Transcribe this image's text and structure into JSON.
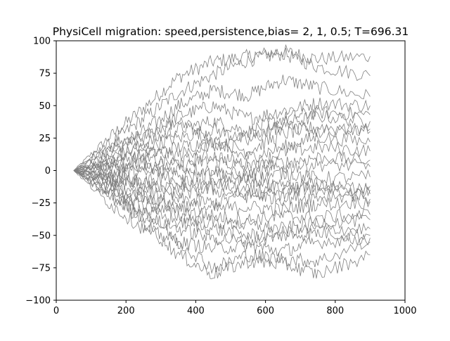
{
  "chart_data": {
    "type": "line",
    "title": "PhysiCell migration: speed,persistence,bias= 2, 1, 0.5; T=696.31",
    "xlabel": "",
    "ylabel": "",
    "xlim": [
      0,
      1000
    ],
    "ylim": [
      -100,
      100
    ],
    "xticks": [
      0,
      200,
      400,
      600,
      800,
      1000
    ],
    "yticks": [
      -100,
      -75,
      -50,
      -25,
      0,
      25,
      50,
      75,
      100
    ],
    "xtick_labels": [
      "0",
      "200",
      "400",
      "600",
      "800",
      "1000"
    ],
    "ytick_labels": [
      "−100",
      "−75",
      "−50",
      "−25",
      "0",
      "25",
      "50",
      "75",
      "100"
    ],
    "grid": false,
    "legend": "none",
    "line_color": "#808080",
    "x_start": 50,
    "x_end": 900,
    "series": [
      {
        "x": [
          50,
          150,
          250,
          350,
          450,
          550,
          650,
          750,
          900
        ],
        "y": [
          0,
          25,
          48,
          72,
          84,
          88,
          92,
          86,
          88
        ]
      },
      {
        "x": [
          50,
          150,
          250,
          350,
          450,
          550,
          650,
          750,
          900
        ],
        "y": [
          0,
          20,
          40,
          60,
          74,
          85,
          90,
          80,
          73
        ]
      },
      {
        "x": [
          50,
          150,
          250,
          350,
          450,
          550,
          650,
          750,
          900
        ],
        "y": [
          0,
          12,
          30,
          50,
          62,
          58,
          70,
          64,
          57
        ]
      },
      {
        "x": [
          50,
          150,
          250,
          350,
          450,
          550,
          650,
          750,
          900
        ],
        "y": [
          0,
          15,
          25,
          42,
          50,
          40,
          46,
          52,
          50
        ]
      },
      {
        "x": [
          50,
          150,
          250,
          350,
          450,
          550,
          650,
          750,
          900
        ],
        "y": [
          0,
          8,
          20,
          32,
          38,
          30,
          40,
          45,
          43
        ]
      },
      {
        "x": [
          50,
          150,
          250,
          350,
          450,
          550,
          650,
          750,
          900
        ],
        "y": [
          0,
          10,
          18,
          25,
          32,
          22,
          36,
          42,
          38
        ]
      },
      {
        "x": [
          50,
          150,
          250,
          350,
          450,
          550,
          650,
          750,
          900
        ],
        "y": [
          0,
          5,
          12,
          18,
          22,
          15,
          28,
          34,
          30
        ]
      },
      {
        "x": [
          50,
          150,
          250,
          350,
          450,
          550,
          650,
          750,
          900
        ],
        "y": [
          0,
          6,
          14,
          12,
          20,
          10,
          18,
          26,
          22
        ]
      },
      {
        "x": [
          50,
          150,
          250,
          350,
          450,
          550,
          650,
          750,
          900
        ],
        "y": [
          0,
          3,
          8,
          6,
          12,
          4,
          14,
          18,
          15
        ]
      },
      {
        "x": [
          50,
          150,
          250,
          350,
          450,
          550,
          650,
          750,
          900
        ],
        "y": [
          0,
          -2,
          5,
          3,
          8,
          2,
          6,
          10,
          8
        ]
      },
      {
        "x": [
          50,
          150,
          250,
          350,
          450,
          550,
          650,
          750,
          900
        ],
        "y": [
          0,
          4,
          -3,
          2,
          0,
          -4,
          2,
          5,
          3
        ]
      },
      {
        "x": [
          50,
          150,
          250,
          350,
          450,
          550,
          650,
          750,
          900
        ],
        "y": [
          0,
          -5,
          -8,
          -5,
          -3,
          -8,
          -2,
          -6,
          -5
        ]
      },
      {
        "x": [
          50,
          150,
          250,
          350,
          450,
          550,
          650,
          750,
          900
        ],
        "y": [
          0,
          -3,
          -10,
          -14,
          -10,
          -16,
          -12,
          -15,
          -12
        ]
      },
      {
        "x": [
          50,
          150,
          250,
          350,
          450,
          550,
          650,
          750,
          900
        ],
        "y": [
          0,
          -8,
          -12,
          -18,
          -15,
          -20,
          -18,
          -12,
          -15
        ]
      },
      {
        "x": [
          50,
          150,
          250,
          350,
          450,
          550,
          650,
          750,
          900
        ],
        "y": [
          0,
          -6,
          -15,
          -22,
          -25,
          -18,
          -22,
          -20,
          -18
        ]
      },
      {
        "x": [
          50,
          150,
          250,
          350,
          450,
          550,
          650,
          750,
          900
        ],
        "y": [
          0,
          -10,
          -20,
          -26,
          -30,
          -28,
          -30,
          -26,
          -24
        ]
      },
      {
        "x": [
          50,
          150,
          250,
          350,
          450,
          550,
          650,
          750,
          900
        ],
        "y": [
          0,
          -12,
          -22,
          -30,
          -35,
          -38,
          -35,
          -36,
          -34
        ]
      },
      {
        "x": [
          50,
          150,
          250,
          350,
          450,
          550,
          650,
          750,
          900
        ],
        "y": [
          0,
          -15,
          -25,
          -35,
          -40,
          -42,
          -45,
          -40,
          -38
        ]
      },
      {
        "x": [
          50,
          150,
          250,
          350,
          450,
          550,
          650,
          750,
          900
        ],
        "y": [
          0,
          -18,
          -30,
          -40,
          -45,
          -50,
          -48,
          -45,
          -45
        ]
      },
      {
        "x": [
          50,
          150,
          250,
          350,
          450,
          550,
          650,
          750,
          900
        ],
        "y": [
          0,
          -20,
          -35,
          -45,
          -52,
          -55,
          -50,
          -48,
          -50
        ]
      },
      {
        "x": [
          50,
          150,
          250,
          350,
          450,
          550,
          650,
          750,
          900
        ],
        "y": [
          0,
          -25,
          -45,
          -55,
          -60,
          -58,
          -62,
          -55,
          -52
        ]
      },
      {
        "x": [
          50,
          150,
          250,
          350,
          450,
          550,
          650,
          750,
          900
        ],
        "y": [
          0,
          -15,
          -40,
          -65,
          -80,
          -70,
          -72,
          -80,
          -65
        ]
      },
      {
        "x": [
          50,
          150,
          250,
          350,
          450,
          550,
          650,
          750,
          900
        ],
        "y": [
          0,
          -12,
          -30,
          -55,
          -75,
          -65,
          -68,
          -70,
          -55
        ]
      },
      {
        "x": [
          50,
          150,
          250,
          350,
          450,
          550,
          650,
          750,
          900
        ],
        "y": [
          0,
          18,
          28,
          38,
          20,
          28,
          34,
          30,
          32
        ]
      },
      {
        "x": [
          50,
          150,
          250,
          350,
          450,
          550,
          650,
          750,
          900
        ],
        "y": [
          0,
          -4,
          6,
          -8,
          -12,
          -6,
          -14,
          -10,
          -22
        ]
      }
    ]
  }
}
